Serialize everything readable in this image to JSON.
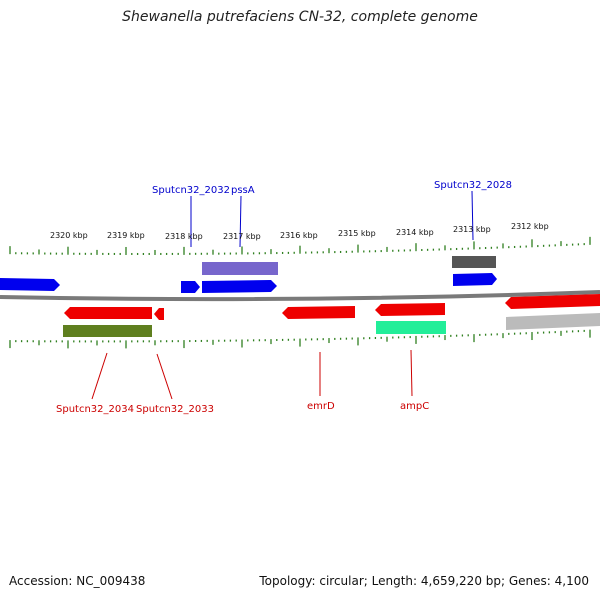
{
  "title": "Shewanella putrefaciens CN-32, complete genome",
  "footer": {
    "accession": "Accession: NC_009438",
    "summary": "Topology: circular; Length: 4,659,220 bp; Genes: 4,100"
  },
  "colors": {
    "forward_gene": "#0000ee",
    "reverse_gene": "#ee0000",
    "forward_label": "#0000cc",
    "reverse_label": "#cc0000",
    "tick": "#2f7f1f",
    "backbone": "#7a7a7a",
    "pssA_band": "#7766cc",
    "sputcn32_2028_band": "#555555",
    "sputcn32_2034_band": "#5f7f1f",
    "ampC_band": "#22ee99",
    "right_band": "#bbbbbb"
  },
  "kbp_ticks": [
    {
      "label": "2320 kbp"
    },
    {
      "label": "2319 kbp"
    },
    {
      "label": "2318 kbp"
    },
    {
      "label": "2317 kbp"
    },
    {
      "label": "2316 kbp"
    },
    {
      "label": "2315 kbp"
    },
    {
      "label": "2314 kbp"
    },
    {
      "label": "2313 kbp"
    },
    {
      "label": "2312 kbp"
    }
  ],
  "gene_labels_top": [
    {
      "text": "Sputcn32_2032",
      "strand": "forward"
    },
    {
      "text": "pssA",
      "strand": "forward"
    },
    {
      "text": "Sputcn32_2028",
      "strand": "forward"
    }
  ],
  "gene_labels_bottom": [
    {
      "text": "Sputcn32_2034",
      "strand": "reverse"
    },
    {
      "text": "Sputcn32_2033",
      "strand": "reverse"
    },
    {
      "text": "emrD",
      "strand": "reverse"
    },
    {
      "text": "ampC",
      "strand": "reverse"
    }
  ]
}
